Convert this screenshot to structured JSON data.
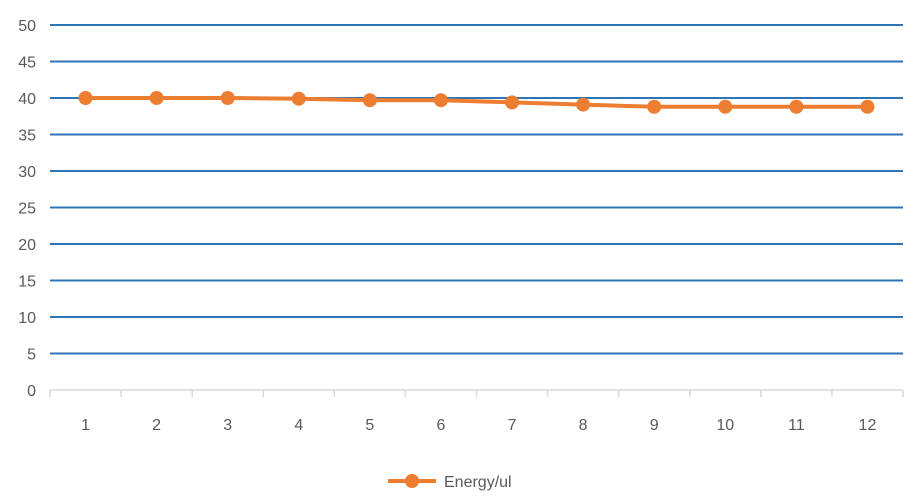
{
  "chart_data": {
    "type": "line",
    "x": [
      "1",
      "2",
      "3",
      "4",
      "5",
      "6",
      "7",
      "8",
      "9",
      "10",
      "11",
      "12"
    ],
    "series": [
      {
        "name": "Energy/ul",
        "values": [
          40.0,
          40.0,
          40.0,
          39.9,
          39.7,
          39.7,
          39.4,
          39.1,
          38.8,
          38.8,
          38.8,
          38.8
        ]
      }
    ],
    "ylim": [
      0,
      50
    ],
    "yticks": [
      "0",
      "5",
      "10",
      "15",
      "20",
      "25",
      "30",
      "35",
      "40",
      "45",
      "50"
    ],
    "grid": true,
    "legend_position": "bottom",
    "colors": {
      "series": "#ED7D31",
      "grid": "#2E75B6",
      "axis": "#D9D9D9",
      "text": "#595959"
    }
  }
}
